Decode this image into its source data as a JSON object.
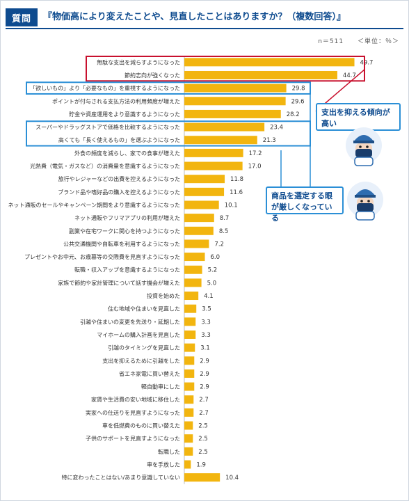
{
  "header": {
    "badge": "質問",
    "question": "『物価高により変えたことや、見直したことはありますか？（複数回答）』",
    "sample": "n＝511",
    "unit": "＜単位：％＞"
  },
  "callouts": {
    "spending": "支出を抑える傾向が高い",
    "selection": "商品を選定する眼が厳しくなっている"
  },
  "colors": {
    "bar": "#f2b50f",
    "accent": "#0e4b8f",
    "highlight_red": "#c8102e",
    "highlight_blue": "#2b8fd6"
  },
  "chart_data": {
    "type": "bar",
    "orientation": "horizontal",
    "title": "『物価高により変えたことや、見直したことはありますか？（複数回答）』",
    "unit": "％",
    "categories": [
      "無駄な支出を減らすようになった",
      "節約志向が強くなった",
      "「欲しいもの」より「必要なもの」を重視するようになった",
      "ポイントが付与される支払方法の利用頻度が増えた",
      "貯金や資産運用をより意識するようになった",
      "スーパーやドラッグストアで価格を比較するようになった",
      "高くても「長く使えるもの」を選ぶようになった",
      "外食の頻度を減らし、家での食事が増えた",
      "光熱費（電気・ガスなど）の消費量を意識するようになった",
      "旅行やレジャーなどの出費を控えるようになった",
      "ブランド品や嗜好品の購入を控えるようになった",
      "ネット通販のセールやキャンペーン期間をより意識するようになった",
      "ネット通販やフリマアプリの利用が増えた",
      "副業や在宅ワークに関心を持つようになった",
      "公共交通機関や自転車を利用するようになった",
      "プレゼントやお中元、お歳暮等の交際費を見直すようになった",
      "転職・収入アップを意識するようになった",
      "家族で節約や家計管理について話す機会が増えた",
      "投資を始めた",
      "住む地域や住まいを見直した",
      "引越や住まいの変更を先送り・延期した",
      "マイホームの購入計画を見直した",
      "引越のタイミングを見直した",
      "支出を抑えるために引越をした",
      "省エネ家電に買い替えた",
      "軽自動車にした",
      "家賃や生活費の安い地域に移住した",
      "実家への仕送りを見直すようになった",
      "車を低燃費のものに買い替えた",
      "子供のサポートを見直すようになった",
      "転職した",
      "車を手放した",
      "特に変わったことはない/あまり意識していない"
    ],
    "values": [
      49.7,
      44.7,
      29.8,
      29.6,
      28.2,
      23.4,
      21.3,
      17.2,
      17.0,
      11.8,
      11.6,
      10.1,
      8.7,
      8.5,
      7.2,
      6.0,
      5.2,
      5.0,
      4.1,
      3.5,
      3.3,
      3.3,
      3.1,
      2.9,
      2.9,
      2.9,
      2.7,
      2.7,
      2.5,
      2.5,
      2.5,
      1.9,
      10.4
    ],
    "value_labels": [
      "49.7",
      "44.7",
      "29.8",
      "29.6",
      "28.2",
      "23.4",
      "21.3",
      "17.2",
      "17.0",
      "11.8",
      "11.6",
      "10.1",
      "8.7",
      "8.5",
      "7.2",
      "6.0",
      "5.2",
      "5.0",
      "4.1",
      "3.5",
      "3.3",
      "3.3",
      "3.1",
      "2.9",
      "2.9",
      "2.9",
      "2.7",
      "2.7",
      "2.5",
      "2.5",
      "2.5",
      "1.9",
      "10.4"
    ],
    "xlim": [
      0,
      50
    ],
    "grid": false,
    "highlight_groups": [
      {
        "color": "red",
        "indices": [
          0,
          1
        ]
      },
      {
        "color": "blue",
        "indices": [
          2
        ]
      },
      {
        "color": "blue",
        "indices": [
          5,
          6
        ]
      }
    ]
  }
}
